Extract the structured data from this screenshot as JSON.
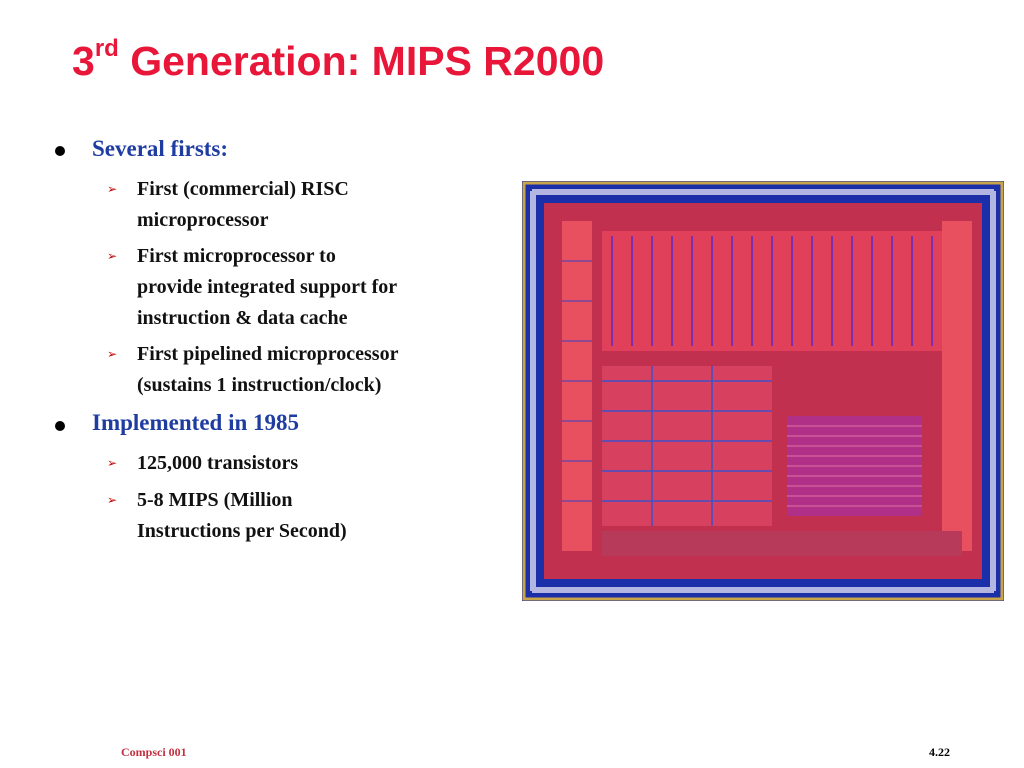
{
  "slide": {
    "title_num": "3",
    "title_sup": "rd",
    "title_rest": " Generation: MIPS R2000",
    "bullets": [
      {
        "text": "Several firsts:",
        "subs": [
          [
            "First (commercial) RISC",
            "microprocessor"
          ],
          [
            "First microprocessor to",
            "provide integrated support for",
            "instruction & data cache"
          ],
          [
            "First pipelined microprocessor",
            "(sustains 1 instruction/clock)"
          ]
        ]
      },
      {
        "text": "Implemented in 1985",
        "subs": [
          [
            "125,000 transistors"
          ],
          [
            "5-8 MIPS (Million",
            "Instructions per Second)"
          ]
        ]
      }
    ],
    "footer_left": "Compsci 001",
    "footer_right": "4.22"
  },
  "colors": {
    "title": "#e8173a",
    "bullet_l1": "#1f3ca0",
    "arrow": "#c00000"
  },
  "image": {
    "name": "mips-r2000-die-photo",
    "description_icon": "chip-die-photo"
  }
}
